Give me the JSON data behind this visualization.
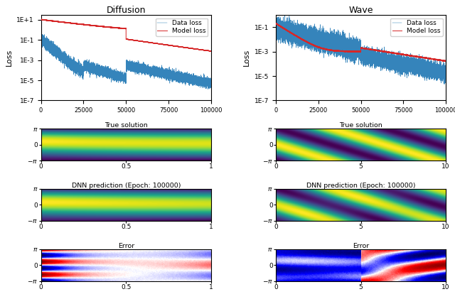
{
  "diffusion_title": "Diffusion",
  "wave_title": "Wave",
  "loss_ylabel": "Loss",
  "legend_data_loss": "Data loss",
  "legend_model_loss": "Model loss",
  "data_loss_color": "#1f77b4",
  "model_loss_color": "#d62728",
  "true_solution_label": "True solution",
  "dnn_prediction_label": "DNN prediction (Epoch: 100000)",
  "error_label": "Error",
  "figsize": [
    6.4,
    4.21
  ],
  "dpi": 100,
  "diff_switch1": 25000,
  "diff_switch2": 50000,
  "wave_switch": 50000,
  "total_epochs": 100000
}
